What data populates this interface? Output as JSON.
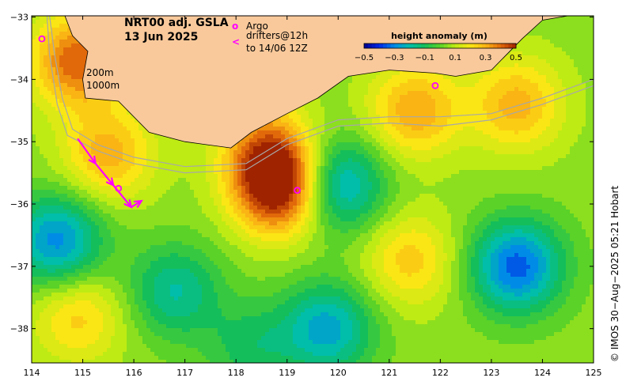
{
  "title": {
    "line1": "NRT00 adj. GSLA",
    "line2": "13 Jun 2025"
  },
  "legend": {
    "argo_symbol": "o",
    "argo_label": "Argo",
    "drifter_symbol": "<",
    "drifter_label_line1": "drifters@12h",
    "drifter_label_line2": "to 14/06 12Z"
  },
  "isobaths": {
    "label1": "200m",
    "label2": "1000m"
  },
  "colorbar": {
    "title": "height anomaly (m)",
    "ticks": [
      "−0.5",
      "−0.3",
      "−0.1",
      "0.1",
      "0.3",
      "0.5"
    ],
    "tick_values": [
      -0.5,
      -0.3,
      -0.1,
      0.1,
      0.3,
      0.5
    ],
    "range": [
      -0.5,
      0.5
    ]
  },
  "axes": {
    "lon_ticks": [
      "114",
      "115",
      "116",
      "117",
      "118",
      "119",
      "120",
      "121",
      "122",
      "123",
      "124",
      "125"
    ],
    "lon_values": [
      114,
      115,
      116,
      117,
      118,
      119,
      120,
      121,
      122,
      123,
      124,
      125
    ],
    "lat_ticks": [
      "−33",
      "−34",
      "−35",
      "−36",
      "−37",
      "−38"
    ],
    "lat_values": [
      -33,
      -34,
      -35,
      -36,
      -37,
      -38
    ],
    "lon_range": [
      114,
      125
    ],
    "lat_range": [
      -38.55,
      -32.98
    ]
  },
  "credit": "© IMOS 30−Aug−2025 05:21 Hobart",
  "colors": {
    "land": "#f9c99b",
    "argo": "#ff00ff",
    "drifter": "#ff00ff",
    "isobath": "#a8a8a8",
    "background": "#ffffff"
  },
  "anomaly_field": {
    "background_value": 0.05,
    "features": [
      {
        "name": "shelf-high-north",
        "lon": 114.9,
        "lat": -33.7,
        "value": 0.42
      },
      {
        "name": "leeuwin-high-west",
        "lon": 115.5,
        "lat": -35.2,
        "value": 0.3
      },
      {
        "name": "shelf-high-south",
        "lon": 118.6,
        "lat": -35.1,
        "value": 0.32
      },
      {
        "name": "eddy-high-centre",
        "lon": 118.85,
        "lat": -35.75,
        "value": 0.55
      },
      {
        "name": "bight-high",
        "lon": 121.5,
        "lat": -34.5,
        "value": 0.32
      },
      {
        "name": "bight-high-east",
        "lon": 123.5,
        "lat": -34.4,
        "value": 0.3
      },
      {
        "name": "high-southeast-a",
        "lon": 121.4,
        "lat": -36.9,
        "value": 0.25
      },
      {
        "name": "high-southwest",
        "lon": 114.9,
        "lat": -37.8,
        "value": 0.25
      },
      {
        "name": "low-west",
        "lon": 114.5,
        "lat": -36.6,
        "value": -0.3
      },
      {
        "name": "low-central",
        "lon": 116.8,
        "lat": -37.4,
        "value": -0.18
      },
      {
        "name": "low-north-central",
        "lon": 120.0,
        "lat": -35.7,
        "value": -0.28
      },
      {
        "name": "low-south-central",
        "lon": 119.8,
        "lat": -38.0,
        "value": -0.25
      },
      {
        "name": "low-east",
        "lon": 123.5,
        "lat": -37.0,
        "value": -0.35
      },
      {
        "name": "low-south-mid",
        "lon": 118.3,
        "lat": -38.3,
        "value": -0.1
      }
    ]
  },
  "argo_floats": [
    {
      "lon": 114.2,
      "lat": -33.35
    },
    {
      "lon": 119.2,
      "lat": -35.78
    },
    {
      "lon": 121.9,
      "lat": -34.1
    },
    {
      "lon": 115.7,
      "lat": -35.75
    }
  ],
  "drifter_tracks": [
    {
      "lon": 114.9,
      "lat": -34.95
    },
    {
      "lon": 115.25,
      "lat": -35.35
    },
    {
      "lon": 115.6,
      "lat": -35.7
    },
    {
      "lon": 115.95,
      "lat": -36.05
    },
    {
      "lon": 116.15,
      "lat": -35.95
    }
  ],
  "coastline": [
    {
      "lon": 114.2,
      "lat": -32.98
    },
    {
      "lon": 114.65,
      "lat": -32.98
    },
    {
      "lon": 114.8,
      "lat": -33.3
    },
    {
      "lon": 115.1,
      "lat": -33.55
    },
    {
      "lon": 115.0,
      "lat": -34.0
    },
    {
      "lon": 115.05,
      "lat": -34.3
    },
    {
      "lon": 115.7,
      "lat": -34.35
    },
    {
      "lon": 116.3,
      "lat": -34.85
    },
    {
      "lon": 117.0,
      "lat": -35.0
    },
    {
      "lon": 117.9,
      "lat": -35.1
    },
    {
      "lon": 118.3,
      "lat": -34.85
    },
    {
      "lon": 119.0,
      "lat": -34.55
    },
    {
      "lon": 119.6,
      "lat": -34.3
    },
    {
      "lon": 120.2,
      "lat": -33.95
    },
    {
      "lon": 121.0,
      "lat": -33.85
    },
    {
      "lon": 121.9,
      "lat": -33.9
    },
    {
      "lon": 122.3,
      "lat": -33.95
    },
    {
      "lon": 123.0,
      "lat": -33.85
    },
    {
      "lon": 123.6,
      "lat": -33.35
    },
    {
      "lon": 124.0,
      "lat": -33.05
    },
    {
      "lon": 124.5,
      "lat": -32.98
    },
    {
      "lon": 125.0,
      "lat": -32.98
    }
  ],
  "isobath_200": [
    {
      "lon": 114.35,
      "lat": -32.98
    },
    {
      "lon": 114.45,
      "lat": -33.6
    },
    {
      "lon": 114.6,
      "lat": -34.3
    },
    {
      "lon": 114.8,
      "lat": -34.8
    },
    {
      "lon": 115.3,
      "lat": -35.05
    },
    {
      "lon": 116.0,
      "lat": -35.25
    },
    {
      "lon": 117.0,
      "lat": -35.4
    },
    {
      "lon": 118.2,
      "lat": -35.35
    },
    {
      "lon": 119.0,
      "lat": -34.95
    },
    {
      "lon": 120.0,
      "lat": -34.65
    },
    {
      "lon": 121.0,
      "lat": -34.6
    },
    {
      "lon": 122.0,
      "lat": -34.6
    },
    {
      "lon": 123.0,
      "lat": -34.55
    },
    {
      "lon": 124.0,
      "lat": -34.3
    },
    {
      "lon": 125.0,
      "lat": -34.0
    }
  ],
  "isobath_1000": [
    {
      "lon": 114.3,
      "lat": -32.98
    },
    {
      "lon": 114.35,
      "lat": -33.6
    },
    {
      "lon": 114.5,
      "lat": -34.4
    },
    {
      "lon": 114.7,
      "lat": -34.9
    },
    {
      "lon": 115.3,
      "lat": -35.15
    },
    {
      "lon": 116.0,
      "lat": -35.35
    },
    {
      "lon": 117.0,
      "lat": -35.5
    },
    {
      "lon": 118.2,
      "lat": -35.45
    },
    {
      "lon": 119.0,
      "lat": -35.05
    },
    {
      "lon": 120.0,
      "lat": -34.75
    },
    {
      "lon": 121.0,
      "lat": -34.7
    },
    {
      "lon": 122.0,
      "lat": -34.75
    },
    {
      "lon": 123.0,
      "lat": -34.65
    },
    {
      "lon": 124.0,
      "lat": -34.4
    },
    {
      "lon": 125.0,
      "lat": -34.1
    }
  ]
}
